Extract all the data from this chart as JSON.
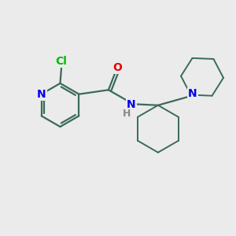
{
  "background_color": "#ebebeb",
  "bond_color": "#3a6b5a",
  "N_color": "#0000ee",
  "O_color": "#ee0000",
  "Cl_color": "#00bb00",
  "H_color": "#888888",
  "figsize": [
    3.0,
    3.0
  ],
  "dpi": 100,
  "xlim": [
    0,
    10
  ],
  "ylim": [
    0,
    10
  ]
}
